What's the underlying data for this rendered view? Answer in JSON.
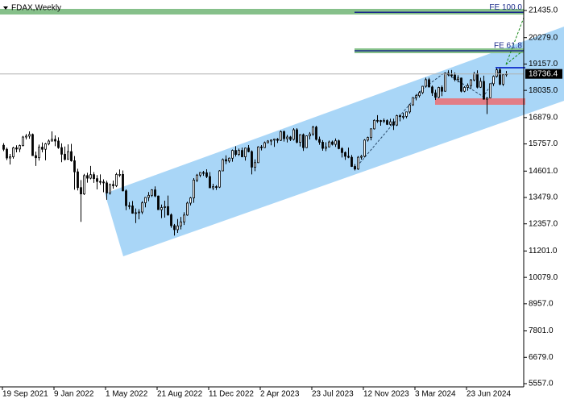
{
  "chart_data": {
    "type": "candlestick",
    "title": "FDAX,Weekly",
    "up_color": "#ffffff",
    "down_color": "#000000",
    "line_color": "#000000",
    "ylim": [
      5420,
      21881
    ],
    "yticks": [
      {
        "value": 21435,
        "label": "21435.0"
      },
      {
        "value": 20279,
        "label": "20279.0"
      },
      {
        "value": 19157,
        "label": "19157.0"
      },
      {
        "value": 18035,
        "label": "18035.0"
      },
      {
        "value": 16879,
        "label": "16879.0"
      },
      {
        "value": 15757,
        "label": "15757.0"
      },
      {
        "value": 14601,
        "label": "14601.0"
      },
      {
        "value": 13479,
        "label": "13479.0"
      },
      {
        "value": 12357,
        "label": "12357.0"
      },
      {
        "value": 11201,
        "label": "11201.0"
      },
      {
        "value": 10079,
        "label": "10079.0"
      },
      {
        "value": 8957,
        "label": "8957.0"
      },
      {
        "value": 7801,
        "label": "7801.0"
      },
      {
        "value": 6679,
        "label": "6679.0"
      },
      {
        "value": 5557,
        "label": "5557.0"
      }
    ],
    "annotations": [
      {
        "label": "FE 100.0",
        "value": 21360
      },
      {
        "label": "FE 61.8",
        "value": 19720
      }
    ],
    "categories": [
      "19 Sep 2021",
      null,
      null,
      null,
      null,
      null,
      null,
      null,
      null,
      null,
      null,
      null,
      null,
      null,
      null,
      null,
      "9 Jan 2022",
      null,
      null,
      null,
      null,
      null,
      null,
      null,
      null,
      null,
      null,
      null,
      null,
      null,
      null,
      null,
      "1 May 2022",
      null,
      null,
      null,
      null,
      null,
      null,
      null,
      null,
      null,
      null,
      null,
      null,
      null,
      null,
      null,
      "21 Aug 2022",
      null,
      null,
      null,
      null,
      null,
      null,
      null,
      null,
      null,
      null,
      null,
      null,
      null,
      null,
      null,
      "11 Dec 2022",
      null,
      null,
      null,
      null,
      null,
      null,
      null,
      null,
      null,
      null,
      null,
      null,
      null,
      null,
      null,
      "2 Apr 2023",
      null,
      null,
      null,
      null,
      null,
      null,
      null,
      null,
      null,
      null,
      null,
      null,
      null,
      null,
      null,
      "23 Jul 2023",
      null,
      null,
      null,
      null,
      null,
      null,
      null,
      null,
      null,
      null,
      null,
      null,
      null,
      null,
      null,
      "12 Nov 2023",
      null,
      null,
      null,
      null,
      null,
      null,
      null,
      null,
      null,
      null,
      null,
      null,
      null,
      null,
      null,
      "3 Mar 2024",
      null,
      null,
      null,
      null,
      null,
      null,
      null,
      null,
      null,
      null,
      null,
      null,
      null,
      null,
      null,
      "23 Jun 2024",
      null,
      null,
      null,
      null,
      null,
      null,
      null,
      null,
      null,
      null,
      null,
      null
    ],
    "ohlc": [
      [
        15700,
        15790,
        15450,
        15530
      ],
      [
        15530,
        15600,
        15070,
        15160
      ],
      [
        15160,
        15330,
        14880,
        15210
      ],
      [
        15210,
        15640,
        15130,
        15590
      ],
      [
        15590,
        15700,
        15400,
        15540
      ],
      [
        15540,
        15730,
        15410,
        15690
      ],
      [
        15690,
        16100,
        15650,
        16050
      ],
      [
        16050,
        16180,
        15950,
        16090
      ],
      [
        16090,
        16290,
        15980,
        16160
      ],
      [
        16160,
        16200,
        15250,
        15260
      ],
      [
        15260,
        15430,
        14820,
        15170
      ],
      [
        15170,
        15730,
        15050,
        15620
      ],
      [
        15620,
        15820,
        15400,
        15530
      ],
      [
        15530,
        15800,
        15060,
        15760
      ],
      [
        15760,
        15950,
        15700,
        15880
      ],
      [
        15880,
        16290,
        15860,
        15950
      ],
      [
        15950,
        16120,
        15660,
        15880
      ],
      [
        15880,
        16040,
        15550,
        15600
      ],
      [
        15600,
        15780,
        14980,
        15320
      ],
      [
        15320,
        15650,
        15050,
        15100
      ],
      [
        15100,
        15740,
        15090,
        15430
      ],
      [
        15430,
        15760,
        15000,
        15040
      ],
      [
        15040,
        15240,
        13810,
        14570
      ],
      [
        14570,
        14700,
        13780,
        13900
      ],
      [
        13900,
        14220,
        12440,
        13630
      ],
      [
        13630,
        14480,
        13580,
        14410
      ],
      [
        14410,
        14530,
        14110,
        14300
      ],
      [
        14300,
        14820,
        14250,
        14450
      ],
      [
        14450,
        14560,
        14100,
        14280
      ],
      [
        14280,
        14430,
        13820,
        14160
      ],
      [
        14160,
        14460,
        14020,
        14140
      ],
      [
        14140,
        14250,
        13700,
        14100
      ],
      [
        14100,
        14190,
        13380,
        13670
      ],
      [
        13670,
        14070,
        13600,
        14030
      ],
      [
        14030,
        14200,
        13850,
        13980
      ],
      [
        13980,
        14530,
        13920,
        14460
      ],
      [
        14460,
        14670,
        14350,
        14460
      ],
      [
        14460,
        14630,
        13740,
        13760
      ],
      [
        13760,
        13820,
        12940,
        13130
      ],
      [
        13130,
        13280,
        12980,
        13120
      ],
      [
        13120,
        13330,
        12790,
        12810
      ],
      [
        12810,
        13010,
        12390,
        12830
      ],
      [
        12830,
        12980,
        12550,
        12860
      ],
      [
        12860,
        13320,
        12770,
        13250
      ],
      [
        13250,
        13500,
        13060,
        13480
      ],
      [
        13480,
        13710,
        13320,
        13570
      ],
      [
        13570,
        13830,
        13500,
        13800
      ],
      [
        13800,
        13950,
        13490,
        13540
      ],
      [
        13540,
        13560,
        12950,
        12960
      ],
      [
        12960,
        13180,
        12600,
        13050
      ],
      [
        13050,
        13340,
        12620,
        13090
      ],
      [
        13090,
        13560,
        12700,
        12740
      ],
      [
        12740,
        12800,
        12190,
        12280
      ],
      [
        12280,
        12350,
        11860,
        12110
      ],
      [
        12110,
        12560,
        11970,
        12270
      ],
      [
        12270,
        12650,
        12120,
        12440
      ],
      [
        12440,
        12850,
        12310,
        12730
      ],
      [
        12730,
        13300,
        12700,
        13240
      ],
      [
        13240,
        13500,
        13140,
        13460
      ],
      [
        13460,
        14300,
        13250,
        14220
      ],
      [
        14220,
        14480,
        14130,
        14430
      ],
      [
        14430,
        14560,
        14340,
        14540
      ],
      [
        14540,
        14610,
        14400,
        14530
      ],
      [
        14530,
        14680,
        14300,
        14370
      ],
      [
        14370,
        14560,
        13890,
        13890
      ],
      [
        13890,
        14060,
        13790,
        13940
      ],
      [
        13940,
        14000,
        13800,
        13920
      ],
      [
        13920,
        14640,
        13880,
        14610
      ],
      [
        14610,
        15140,
        14600,
        15090
      ],
      [
        15090,
        15270,
        14900,
        15030
      ],
      [
        15030,
        15180,
        14960,
        15150
      ],
      [
        15150,
        15520,
        15000,
        15480
      ],
      [
        15480,
        15660,
        15220,
        15310
      ],
      [
        15310,
        15560,
        15250,
        15480
      ],
      [
        15480,
        15600,
        15190,
        15210
      ],
      [
        15210,
        15600,
        15050,
        15580
      ],
      [
        15580,
        15710,
        15400,
        15430
      ],
      [
        15430,
        15480,
        14460,
        14770
      ],
      [
        14770,
        15100,
        14600,
        14960
      ],
      [
        14960,
        15660,
        14950,
        15630
      ],
      [
        15630,
        15710,
        15480,
        15600
      ],
      [
        15600,
        15860,
        15580,
        15810
      ],
      [
        15810,
        15920,
        15780,
        15880
      ],
      [
        15880,
        15950,
        15700,
        15920
      ],
      [
        15920,
        15980,
        15630,
        15960
      ],
      [
        15960,
        16010,
        15800,
        15910
      ],
      [
        15910,
        16330,
        15880,
        16280
      ],
      [
        16280,
        16330,
        15860,
        15980
      ],
      [
        15980,
        16140,
        15820,
        16050
      ],
      [
        16050,
        16100,
        15880,
        15950
      ],
      [
        15950,
        16430,
        15900,
        16360
      ],
      [
        16360,
        16430,
        15780,
        15830
      ],
      [
        15830,
        16170,
        15650,
        16150
      ],
      [
        16150,
        16200,
        15460,
        15600
      ],
      [
        15600,
        16120,
        15580,
        16100
      ],
      [
        16100,
        16260,
        15950,
        16180
      ],
      [
        16180,
        16530,
        16100,
        16470
      ],
      [
        16470,
        16530,
        15900,
        15950
      ],
      [
        15950,
        16070,
        15720,
        15830
      ],
      [
        15830,
        15920,
        15470,
        15570
      ],
      [
        15570,
        15830,
        15450,
        15630
      ],
      [
        15630,
        15900,
        15610,
        15840
      ],
      [
        15840,
        15900,
        15690,
        15740
      ],
      [
        15740,
        15990,
        15630,
        15890
      ],
      [
        15890,
        15940,
        15530,
        15560
      ],
      [
        15560,
        15620,
        15180,
        15390
      ],
      [
        15390,
        15440,
        15080,
        15230
      ],
      [
        15230,
        15600,
        15150,
        15190
      ],
      [
        15190,
        15290,
        14780,
        14800
      ],
      [
        14800,
        14900,
        14630,
        14690
      ],
      [
        14690,
        15240,
        14650,
        15190
      ],
      [
        15190,
        15290,
        15090,
        15230
      ],
      [
        15230,
        15960,
        15180,
        15920
      ],
      [
        15920,
        16070,
        15860,
        16030
      ],
      [
        16030,
        16420,
        15910,
        16400
      ],
      [
        16400,
        16800,
        16370,
        16760
      ],
      [
        16760,
        16980,
        16650,
        16750
      ],
      [
        16750,
        16780,
        16530,
        16710
      ],
      [
        16710,
        16840,
        16650,
        16750
      ],
      [
        16750,
        16800,
        16560,
        16590
      ],
      [
        16590,
        16830,
        16530,
        16700
      ],
      [
        16700,
        16830,
        16350,
        16560
      ],
      [
        16560,
        17000,
        16520,
        16960
      ],
      [
        16960,
        17030,
        16720,
        16920
      ],
      [
        16920,
        17080,
        16800,
        16930
      ],
      [
        16930,
        17130,
        16850,
        17120
      ],
      [
        17120,
        17450,
        17050,
        17420
      ],
      [
        17420,
        17750,
        17380,
        17730
      ],
      [
        17730,
        17880,
        17610,
        17810
      ],
      [
        17810,
        18000,
        17730,
        17940
      ],
      [
        17940,
        18230,
        17880,
        18210
      ],
      [
        18210,
        18570,
        18150,
        18490
      ],
      [
        18490,
        18570,
        18160,
        18180
      ],
      [
        18180,
        18240,
        17800,
        17930
      ],
      [
        17930,
        18060,
        17630,
        17740
      ],
      [
        17740,
        18190,
        17700,
        18160
      ],
      [
        18160,
        18240,
        17790,
        18000
      ],
      [
        18000,
        18790,
        17980,
        18770
      ],
      [
        18770,
        18890,
        18640,
        18700
      ],
      [
        18700,
        18900,
        18580,
        18690
      ],
      [
        18690,
        18800,
        18420,
        18500
      ],
      [
        18500,
        18680,
        18380,
        18560
      ],
      [
        18560,
        18580,
        17950,
        18000
      ],
      [
        18000,
        18210,
        17960,
        18160
      ],
      [
        18160,
        18330,
        18020,
        18240
      ],
      [
        18240,
        18520,
        18100,
        18480
      ],
      [
        18480,
        18820,
        18420,
        18750
      ],
      [
        18750,
        18890,
        18120,
        18170
      ],
      [
        18170,
        18570,
        18140,
        18420
      ],
      [
        18420,
        18660,
        17640,
        17660
      ],
      [
        17660,
        17750,
        17030,
        17720
      ],
      [
        17720,
        18330,
        17700,
        18320
      ],
      [
        18320,
        18670,
        18220,
        18630
      ],
      [
        18630,
        18980,
        18580,
        18910
      ],
      [
        18910,
        18990,
        18250,
        18300
      ],
      [
        18300,
        18710,
        18220,
        18700
      ],
      [
        18700,
        18860,
        18620,
        18736.4
      ]
    ]
  }
}
